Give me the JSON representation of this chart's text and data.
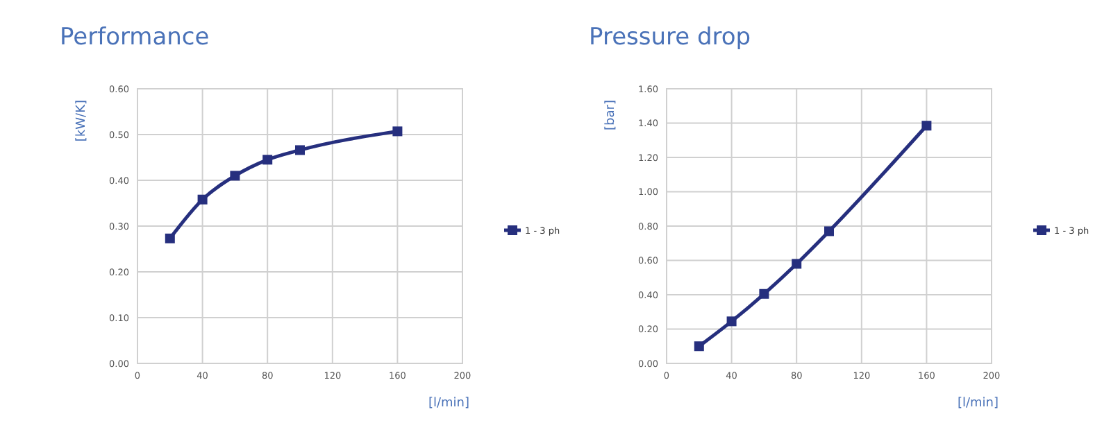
{
  "chart_data": [
    {
      "type": "line",
      "title": "Performance",
      "xlabel": "[l/min]",
      "ylabel": "[kW/K]",
      "x": [
        20,
        40,
        60,
        80,
        100,
        160
      ],
      "series": [
        {
          "name": "1 - 3 ph",
          "color": "#262f7e",
          "values": [
            0.273,
            0.358,
            0.41,
            0.445,
            0.466,
            0.507
          ]
        }
      ],
      "xlim": [
        0,
        200
      ],
      "xticks": [
        0,
        40,
        80,
        120,
        160,
        200
      ],
      "ylim": [
        0,
        0.6
      ],
      "yticks": [
        {
          "value": 0,
          "label": "0.00"
        },
        {
          "value": 0.1,
          "label": "0.10"
        },
        {
          "value": 0.2,
          "label": "0.20"
        },
        {
          "value": 0.3,
          "label": "0.30"
        },
        {
          "value": 0.4,
          "label": "0.40"
        },
        {
          "value": 0.5,
          "label": "0.50"
        },
        {
          "value": 0.6,
          "label": "0.60"
        }
      ],
      "grid": true,
      "legend": "right",
      "marker": "square",
      "line_style": "solid"
    },
    {
      "type": "line",
      "title": "Pressure drop",
      "xlabel": "[l/min]",
      "ylabel": "[bar]",
      "x": [
        20,
        40,
        60,
        80,
        100,
        160
      ],
      "series": [
        {
          "name": "1 - 3 ph",
          "color": "#262f7e",
          "values": [
            0.1,
            0.245,
            0.405,
            0.58,
            0.77,
            1.385
          ]
        }
      ],
      "xlim": [
        0,
        200
      ],
      "xticks": [
        0,
        40,
        80,
        120,
        160,
        200
      ],
      "ylim": [
        0,
        1.6
      ],
      "yticks": [
        {
          "value": 0,
          "label": "0.00"
        },
        {
          "value": 0.2,
          "label": "0.20"
        },
        {
          "value": 0.4,
          "label": "0.40"
        },
        {
          "value": 0.6,
          "label": "0.60"
        },
        {
          "value": 0.8,
          "label": "0.80"
        },
        {
          "value": 1,
          "label": "1.00"
        },
        {
          "value": 1.2,
          "label": "1.20"
        },
        {
          "value": 1.4,
          "label": "1.40"
        },
        {
          "value": 1.6,
          "label": "1.60"
        }
      ],
      "grid": true,
      "legend": "right",
      "marker": "square",
      "line_style": "solid"
    }
  ]
}
